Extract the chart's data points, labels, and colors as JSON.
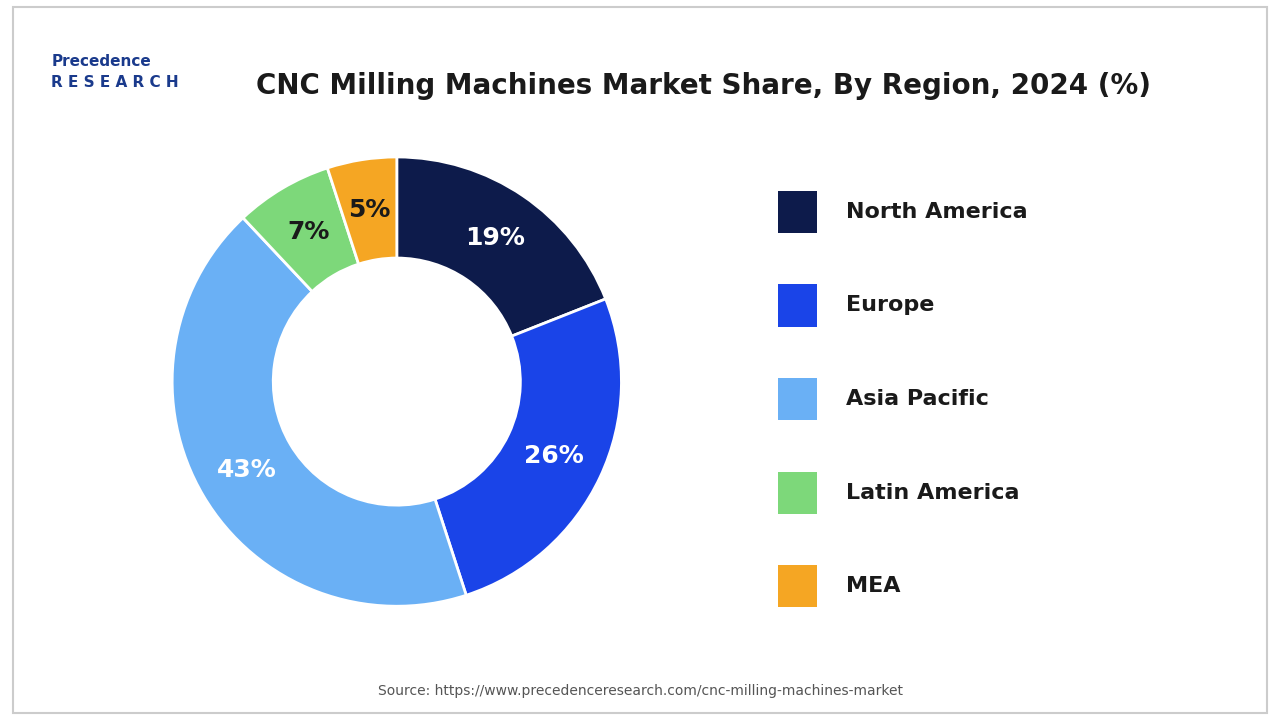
{
  "title": "CNC Milling Machines Market Share, By Region, 2024 (%)",
  "segments": [
    {
      "label": "North America",
      "value": 19,
      "color": "#0d1b4b"
    },
    {
      "label": "Europe",
      "value": 26,
      "color": "#1a44e8"
    },
    {
      "label": "Asia Pacific",
      "value": 43,
      "color": "#6ab0f5"
    },
    {
      "label": "Latin America",
      "value": 7,
      "color": "#7dd87a"
    },
    {
      "label": "MEA",
      "value": 5,
      "color": "#f5a623"
    }
  ],
  "pct_label_colors": {
    "North America": "white",
    "Europe": "white",
    "Asia Pacific": "white",
    "Latin America": "#1a1a1a",
    "MEA": "#1a1a1a"
  },
  "donut_width": 0.45,
  "start_angle": 90,
  "source_text": "Source: https://www.precedenceresearch.com/cnc-milling-machines-market",
  "background_color": "#ffffff",
  "title_fontsize": 20,
  "legend_fontsize": 16,
  "pct_fontsize": 18,
  "border_color": "#cccccc"
}
